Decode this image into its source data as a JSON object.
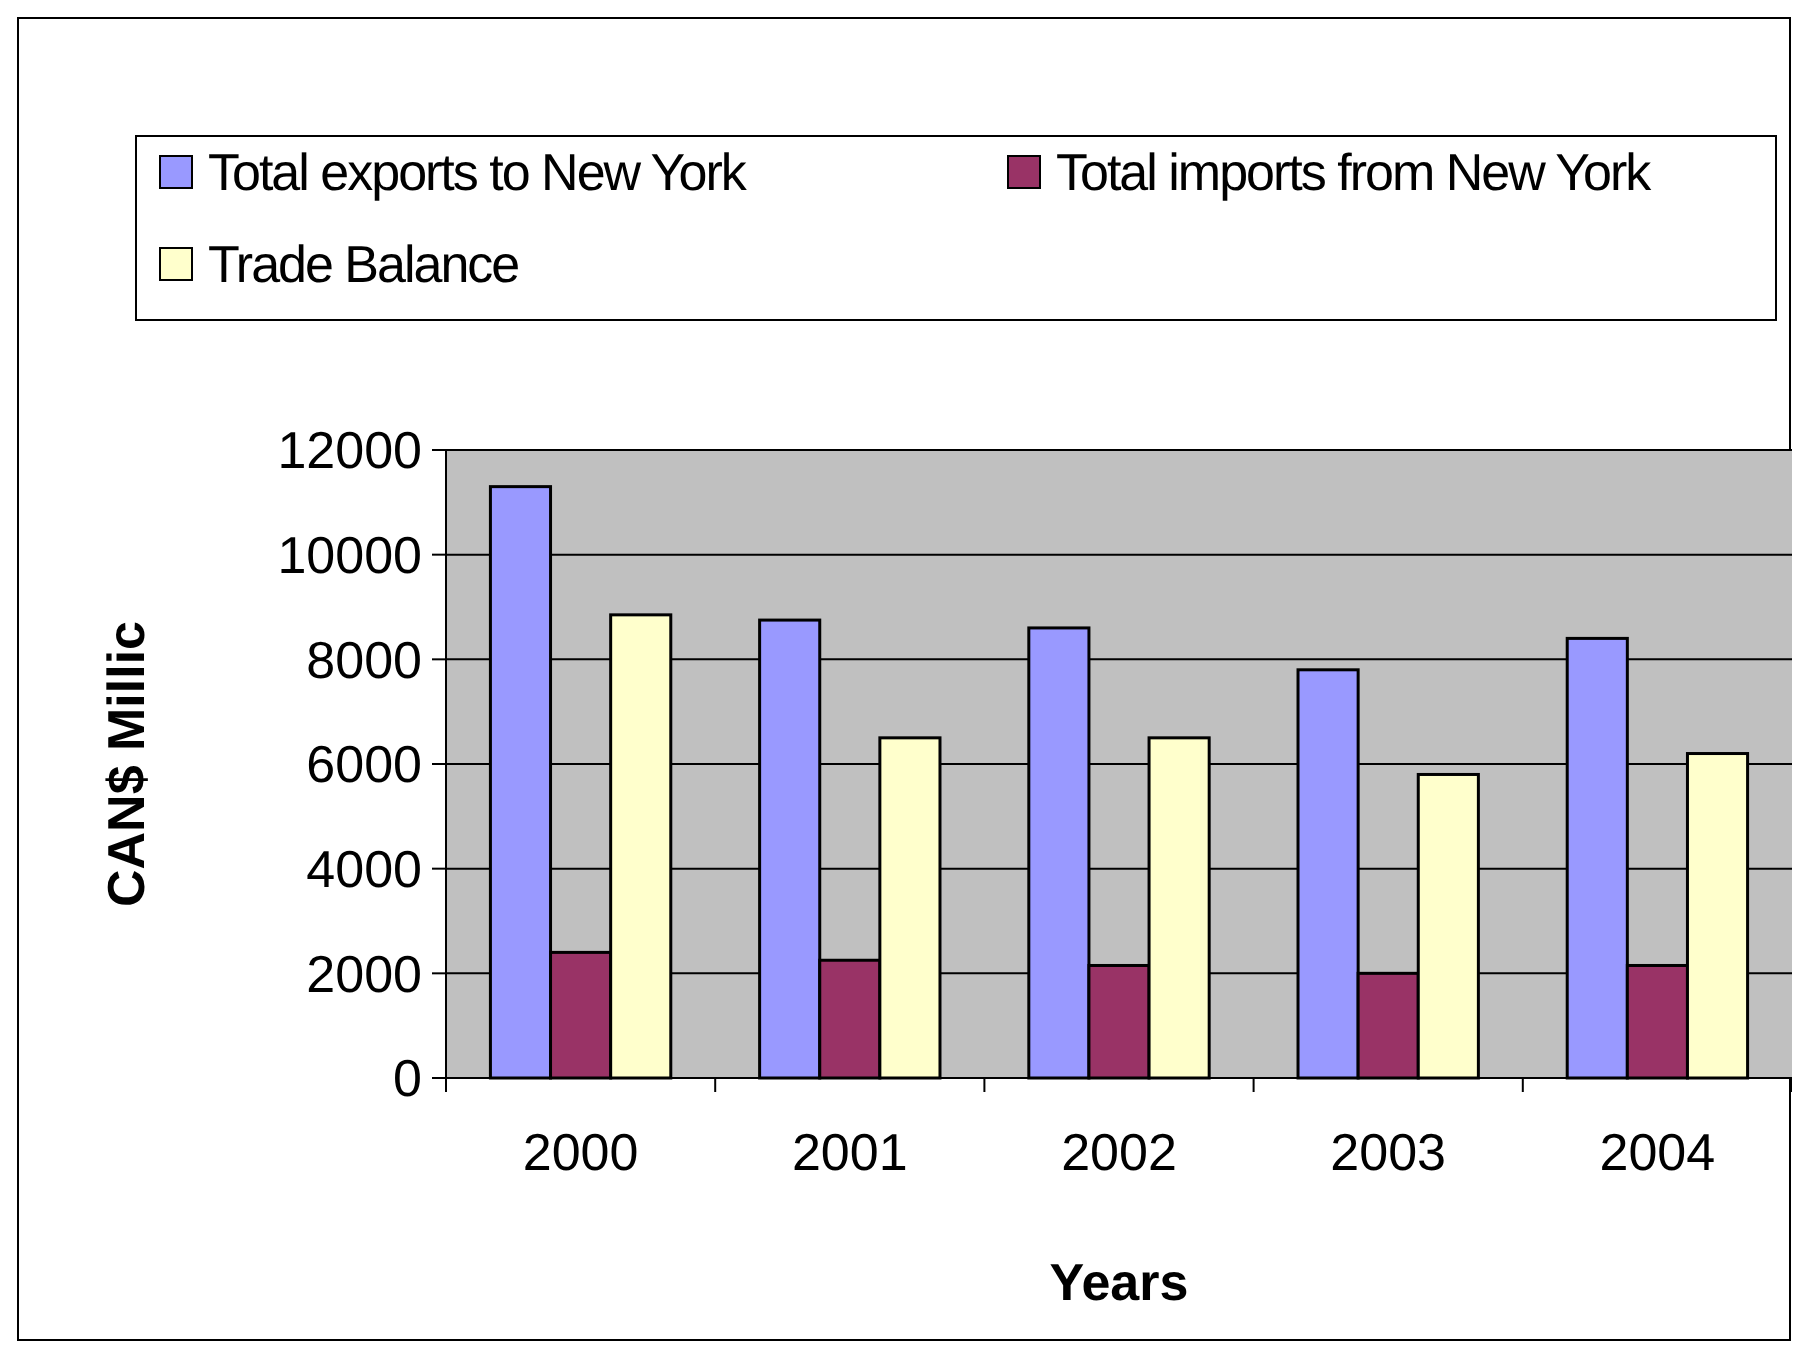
{
  "chart_data": {
    "type": "bar",
    "xlabel": "Years",
    "ylabel": "CAN$ Millic",
    "categories": [
      "2000",
      "2001",
      "2002",
      "2003",
      "2004"
    ],
    "series": [
      {
        "name": "Total exports to New York",
        "color": "#9999ff",
        "values": [
          11300,
          8750,
          8600,
          7800,
          8400
        ]
      },
      {
        "name": "Total imports from New York",
        "color": "#993366",
        "values": [
          2400,
          2250,
          2150,
          2000,
          2150
        ]
      },
      {
        "name": "Trade Balance",
        "color": "#ffffcc",
        "values": [
          8850,
          6500,
          6500,
          5800,
          6200
        ]
      }
    ],
    "ylim": [
      0,
      12000
    ],
    "yticks": [
      0,
      2000,
      4000,
      6000,
      8000,
      10000,
      12000
    ],
    "grid": "y",
    "legend": "top"
  }
}
